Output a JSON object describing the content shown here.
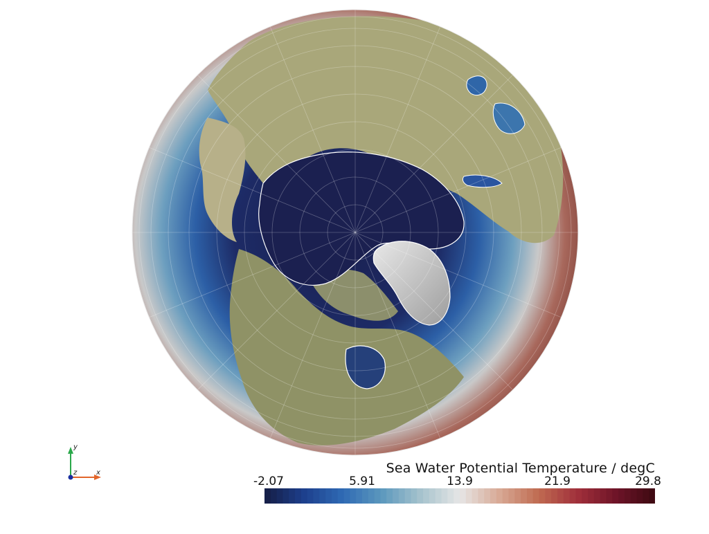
{
  "map": {
    "projection": "orthographic",
    "view": "north-polar",
    "variable": "Sea Water Potential Temperature",
    "units": "degC",
    "grid_style": "white cell edges"
  },
  "colorbar": {
    "title": "Sea Water Potential Temperature / degC",
    "range": [
      -2.07,
      29.8
    ],
    "ticks": [
      "-2.07",
      "5.91",
      "13.9",
      "21.9",
      "29.8"
    ],
    "colormap": "balance",
    "stops": [
      "#151d44",
      "#1d3f8c",
      "#2f6ab4",
      "#5c98bd",
      "#a6c3cd",
      "#e6e6e6",
      "#d8aa96",
      "#c06c52",
      "#a1303b",
      "#6e1428",
      "#3c0911"
    ]
  },
  "orientation_axes": {
    "y": "y",
    "z": "z",
    "x": "x",
    "colors": {
      "y": "#2aa84a",
      "x": "#e2652a",
      "z": "#1a2fa0"
    }
  }
}
